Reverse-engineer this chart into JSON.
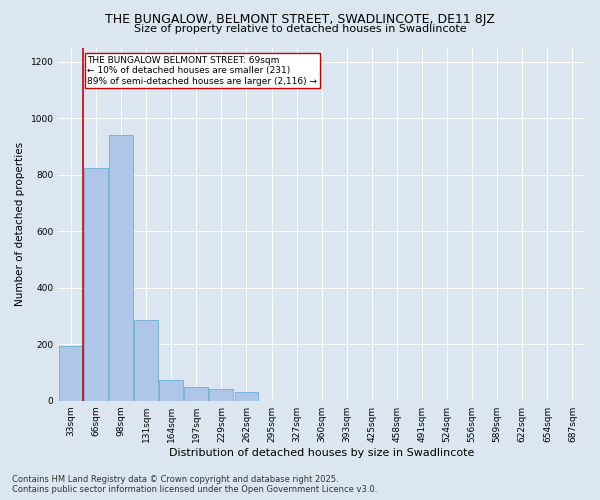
{
  "title": "THE BUNGALOW, BELMONT STREET, SWADLINCOTE, DE11 8JZ",
  "subtitle": "Size of property relative to detached houses in Swadlincote",
  "xlabel": "Distribution of detached houses by size in Swadlincote",
  "ylabel": "Number of detached properties",
  "categories": [
    "33sqm",
    "66sqm",
    "98sqm",
    "131sqm",
    "164sqm",
    "197sqm",
    "229sqm",
    "262sqm",
    "295sqm",
    "327sqm",
    "360sqm",
    "393sqm",
    "425sqm",
    "458sqm",
    "491sqm",
    "524sqm",
    "556sqm",
    "589sqm",
    "622sqm",
    "654sqm",
    "687sqm"
  ],
  "values": [
    195,
    825,
    940,
    285,
    75,
    50,
    40,
    30,
    0,
    0,
    0,
    0,
    0,
    0,
    0,
    0,
    0,
    0,
    0,
    0,
    0
  ],
  "bar_color": "#aec6e8",
  "bar_edge_color": "#6baed6",
  "vline_color": "#cc0000",
  "vline_x": 0.5,
  "annotation_text": "THE BUNGALOW BELMONT STREET: 69sqm\n← 10% of detached houses are smaller (231)\n89% of semi-detached houses are larger (2,116) →",
  "annotation_box_color": "#ffffff",
  "annotation_box_edge_color": "#cc0000",
  "ylim": [
    0,
    1250
  ],
  "yticks": [
    0,
    200,
    400,
    600,
    800,
    1000,
    1200
  ],
  "background_color": "#dce6f0",
  "plot_bg_color": "#dce6f0",
  "footer_line1": "Contains HM Land Registry data © Crown copyright and database right 2025.",
  "footer_line2": "Contains public sector information licensed under the Open Government Licence v3.0.",
  "title_fontsize": 9,
  "subtitle_fontsize": 8,
  "annotation_fontsize": 6.5,
  "footer_fontsize": 6,
  "ylabel_fontsize": 7.5,
  "xlabel_fontsize": 8,
  "tick_fontsize": 6.5
}
